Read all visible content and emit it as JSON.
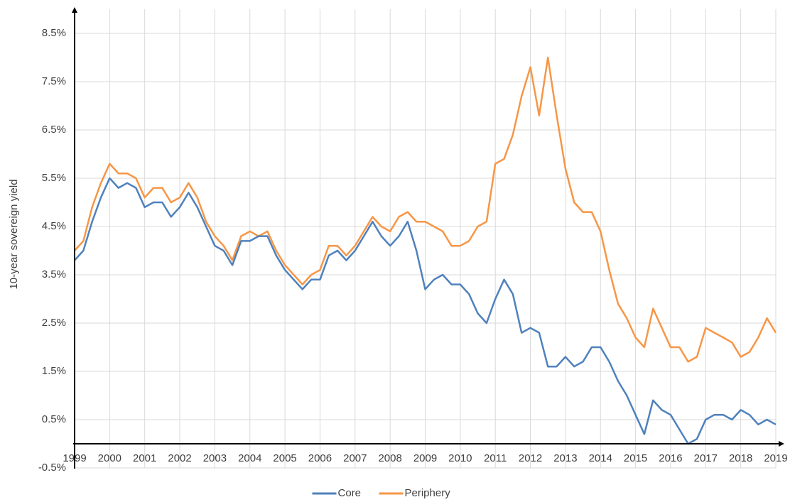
{
  "chart_data": {
    "type": "line",
    "y_label": "10-year sovereign yield",
    "x": [
      1999,
      1999.25,
      1999.5,
      1999.75,
      2000,
      2000.25,
      2000.5,
      2000.75,
      2001,
      2001.25,
      2001.5,
      2001.75,
      2002,
      2002.25,
      2002.5,
      2002.75,
      2003,
      2003.25,
      2003.5,
      2003.75,
      2004,
      2004.25,
      2004.5,
      2004.75,
      2005,
      2005.25,
      2005.5,
      2005.75,
      2006,
      2006.25,
      2006.5,
      2006.75,
      2007,
      2007.25,
      2007.5,
      2007.75,
      2008,
      2008.25,
      2008.5,
      2008.75,
      2009,
      2009.25,
      2009.5,
      2009.75,
      2010,
      2010.25,
      2010.5,
      2010.75,
      2011,
      2011.25,
      2011.5,
      2011.75,
      2012,
      2012.25,
      2012.5,
      2012.75,
      2013,
      2013.25,
      2013.5,
      2013.75,
      2014,
      2014.25,
      2014.5,
      2014.75,
      2015,
      2015.25,
      2015.5,
      2015.75,
      2016,
      2016.25,
      2016.5,
      2016.75,
      2017,
      2017.25,
      2017.5,
      2017.75,
      2018,
      2018.25,
      2018.5,
      2018.75,
      2019
    ],
    "series": [
      {
        "name": "Core",
        "color": "#4f81bd",
        "values": [
          3.8,
          4.0,
          4.6,
          5.1,
          5.5,
          5.3,
          5.4,
          5.3,
          4.9,
          5.0,
          5.0,
          4.7,
          4.9,
          5.2,
          4.9,
          4.5,
          4.1,
          4.0,
          3.7,
          4.2,
          4.2,
          4.3,
          4.3,
          3.9,
          3.6,
          3.4,
          3.2,
          3.4,
          3.4,
          3.9,
          4.0,
          3.8,
          4.0,
          4.3,
          4.6,
          4.3,
          4.1,
          4.3,
          4.6,
          4.0,
          3.2,
          3.4,
          3.5,
          3.3,
          3.3,
          3.1,
          2.7,
          2.5,
          3.0,
          3.4,
          3.1,
          2.3,
          2.4,
          2.3,
          1.6,
          1.6,
          1.8,
          1.6,
          1.7,
          2.0,
          2.0,
          1.7,
          1.3,
          1.0,
          0.6,
          0.2,
          0.9,
          0.7,
          0.6,
          0.3,
          0.0,
          0.1,
          0.5,
          0.6,
          0.6,
          0.5,
          0.7,
          0.6,
          0.4,
          0.5,
          0.4
        ]
      },
      {
        "name": "Periphery",
        "color": "#f79646",
        "values": [
          4.0,
          4.2,
          4.9,
          5.4,
          5.8,
          5.6,
          5.6,
          5.5,
          5.1,
          5.3,
          5.3,
          5.0,
          5.1,
          5.4,
          5.1,
          4.6,
          4.3,
          4.1,
          3.8,
          4.3,
          4.4,
          4.3,
          4.4,
          4.0,
          3.7,
          3.5,
          3.3,
          3.5,
          3.6,
          4.1,
          4.1,
          3.9,
          4.1,
          4.4,
          4.7,
          4.5,
          4.4,
          4.7,
          4.8,
          4.6,
          4.6,
          4.5,
          4.4,
          4.1,
          4.1,
          4.2,
          4.5,
          4.6,
          5.8,
          5.9,
          6.4,
          7.2,
          7.8,
          6.8,
          8.0,
          6.8,
          5.7,
          5.0,
          4.8,
          4.8,
          4.4,
          3.6,
          2.9,
          2.6,
          2.2,
          2.0,
          2.8,
          2.4,
          2.0,
          2.0,
          1.7,
          1.8,
          2.4,
          2.3,
          2.2,
          2.1,
          1.8,
          1.9,
          2.2,
          2.6,
          2.3
        ]
      }
    ],
    "xlim": [
      1999,
      2019
    ],
    "xticks": [
      1999,
      2000,
      2001,
      2002,
      2003,
      2004,
      2005,
      2006,
      2007,
      2008,
      2009,
      2010,
      2011,
      2012,
      2013,
      2014,
      2015,
      2016,
      2017,
      2018,
      2019
    ],
    "ylim": [
      -0.5,
      9
    ],
    "yticks": [
      {
        "value": -0.5,
        "label": "-0.5%"
      },
      {
        "value": 0.5,
        "label": "0.5%"
      },
      {
        "value": 1.5,
        "label": "1.5%"
      },
      {
        "value": 2.5,
        "label": "2.5%"
      },
      {
        "value": 3.5,
        "label": "3.5%"
      },
      {
        "value": 4.5,
        "label": "4.5%"
      },
      {
        "value": 5.5,
        "label": "5.5%"
      },
      {
        "value": 6.5,
        "label": "6.5%"
      },
      {
        "value": 7.5,
        "label": "7.5%"
      },
      {
        "value": 8.5,
        "label": "8.5%"
      }
    ],
    "grid": true,
    "legend": "bottom"
  }
}
